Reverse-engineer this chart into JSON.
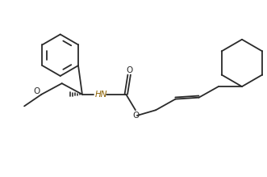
{
  "line_color": "#2a2a2a",
  "hn_color": "#8B6000",
  "line_width": 1.3,
  "figsize": [
    3.31,
    2.19
  ],
  "dpi": 100,
  "xlim": [
    -0.05,
    3.36
  ],
  "ylim": [
    0.0,
    2.19
  ]
}
